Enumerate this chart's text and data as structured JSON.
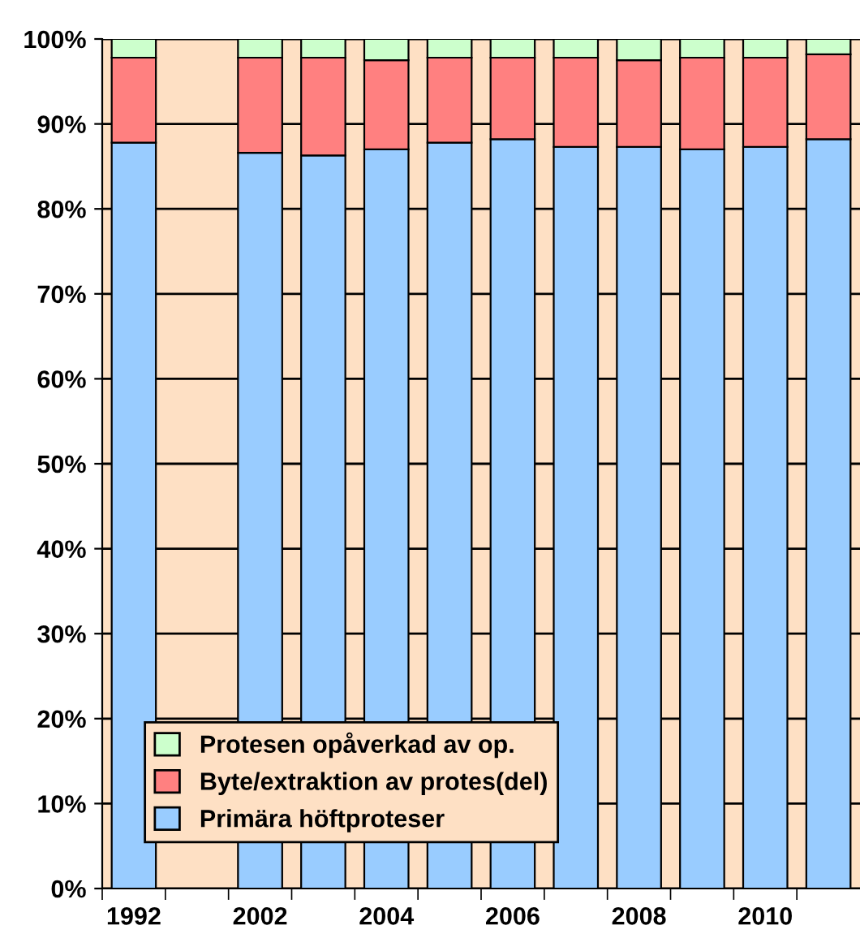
{
  "chart_data": {
    "type": "bar",
    "stacked": true,
    "categories": [
      "1992",
      null,
      "2002",
      null,
      "2004",
      null,
      "2006",
      null,
      "2008",
      null,
      "2010",
      null
    ],
    "series": [
      {
        "name": "Primära höftproteser",
        "color": "#99ccff",
        "values": [
          87.8,
          null,
          86.6,
          86.3,
          87.0,
          87.8,
          88.2,
          87.3,
          87.3,
          87.0,
          87.3,
          88.2
        ]
      },
      {
        "name": "Byte/extraktion av protes(del)",
        "color": "#ff8080",
        "values": [
          10.0,
          null,
          11.2,
          11.5,
          10.5,
          10.0,
          9.6,
          10.5,
          10.2,
          10.8,
          10.5,
          10.0
        ]
      },
      {
        "name": "Protesen opåverkad av op.",
        "color": "#ccffcc",
        "values": [
          2.2,
          null,
          2.2,
          2.2,
          2.5,
          2.2,
          2.2,
          2.2,
          2.5,
          2.2,
          2.2,
          1.8
        ]
      }
    ],
    "ylim": [
      0,
      100
    ],
    "yticks": [
      {
        "value": 0,
        "label": "0%"
      },
      {
        "value": 10,
        "label": "10%"
      },
      {
        "value": 20,
        "label": "20%"
      },
      {
        "value": 30,
        "label": "30%"
      },
      {
        "value": 40,
        "label": "40%"
      },
      {
        "value": 50,
        "label": "50%"
      },
      {
        "value": 60,
        "label": "60%"
      },
      {
        "value": 70,
        "label": "70%"
      },
      {
        "value": 80,
        "label": "80%"
      },
      {
        "value": 90,
        "label": "90%"
      },
      {
        "value": 100,
        "label": "100%"
      }
    ],
    "grid": "y",
    "legend": "bottom left"
  }
}
